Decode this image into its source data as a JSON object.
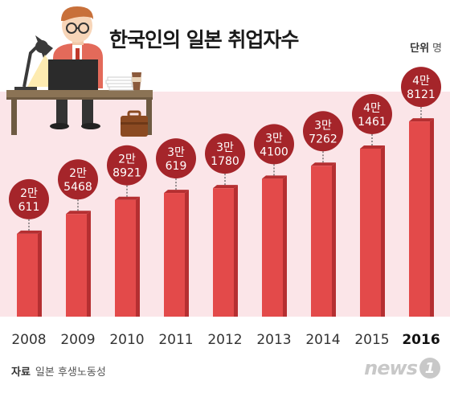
{
  "title": "한국인의 일본 취업자수",
  "unit": {
    "label": "단위",
    "value": "명"
  },
  "source": {
    "label": "자료",
    "value": "일본 후생노동성"
  },
  "logo": {
    "text": "news",
    "badge": "1"
  },
  "colors": {
    "bar": "#e34a4a",
    "bar_side": "#b52f31",
    "bubble": "#a5252a",
    "band": "#fbe5e8"
  },
  "chart_data": {
    "type": "bar",
    "title": "한국인의 일본 취업자수",
    "categories": [
      "2008",
      "2009",
      "2010",
      "2011",
      "2012",
      "2013",
      "2014",
      "2015",
      "2016"
    ],
    "values": [
      20611,
      25468,
      28921,
      30619,
      31780,
      34100,
      37262,
      41461,
      48121
    ],
    "value_labels": [
      [
        "2만",
        "611"
      ],
      [
        "2만",
        "5468"
      ],
      [
        "2만",
        "8921"
      ],
      [
        "3만",
        "619"
      ],
      [
        "3만",
        "1780"
      ],
      [
        "3만",
        "4100"
      ],
      [
        "3만",
        "7262"
      ],
      [
        "4만",
        "1461"
      ],
      [
        "4만",
        "8121"
      ]
    ],
    "highlight": "2016",
    "ylabel": "",
    "grid": false,
    "legend": "none"
  }
}
